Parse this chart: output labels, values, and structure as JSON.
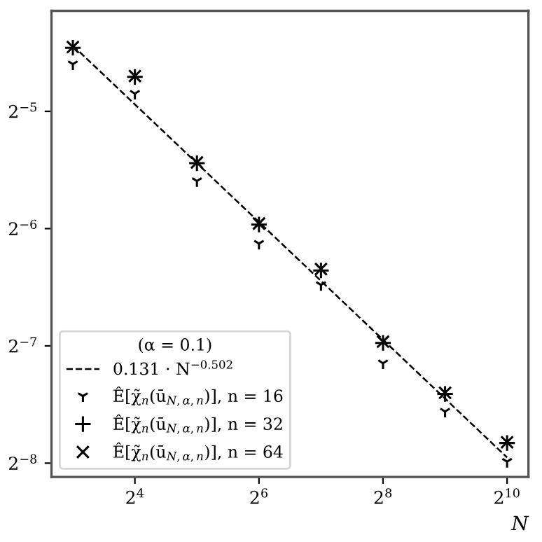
{
  "chart_data": {
    "type": "scatter",
    "xlabel": "N",
    "legend_title": "(α = 0.1)",
    "log": "xy",
    "grid": false,
    "legend": "bottom left",
    "x": [
      8,
      16,
      32,
      64,
      128,
      256,
      512,
      1024
    ],
    "xlim": [
      6.3,
      1300
    ],
    "ylim": [
      0.0036,
      0.0566
    ],
    "xticks": [
      {
        "value": 16,
        "label": "2$^{4}$"
      },
      {
        "value": 64,
        "label": "2$^{6}$"
      },
      {
        "value": 256,
        "label": "2$^{8}$"
      },
      {
        "value": 1024,
        "label": "2$^{10}$"
      }
    ],
    "yticks": [
      {
        "value": 0.03125,
        "label": "2$^{−5}$"
      },
      {
        "value": 0.015625,
        "label": "2$^{−6}$"
      },
      {
        "value": 0.0078125,
        "label": "2$^{−7}$"
      },
      {
        "value": 0.00390625,
        "label": "2$^{−8}$"
      }
    ],
    "series": [
      {
        "name": "0.131 · N$^{−0.502}$",
        "type": "line",
        "line_style": "dashed",
        "marker": "none",
        "color": "#000000",
        "x": [
          8,
          1024
        ],
        "values": [
          0.0461,
          0.00404
        ]
      },
      {
        "name": "Ê[χ̃$_{n}$(ū$_{N,α,n}$)], n = 16",
        "color": "#000000",
        "values": [
          0.0413,
          0.0347,
          0.0207,
          0.0143,
          0.0112,
          0.00705,
          0.0053,
          0.00394
        ]
      },
      {
        "name": "Ê[χ̃$_{n}$(ū$_{N,α,n}$)], n = 32",
        "marker": "plus",
        "color": "#000000",
        "values": [
          0.0455,
          0.0383,
          0.023,
          0.016,
          0.0122,
          0.00795,
          0.00588,
          0.0044
        ]
      },
      {
        "name": "Ê[χ̃$_{n}$(ū$_{N,α,n}$)], n = 64",
        "marker": "cross",
        "color": "#000000",
        "values": [
          0.0457,
          0.0385,
          0.0231,
          0.0161,
          0.0123,
          0.00801,
          0.00592,
          0.00442
        ]
      }
    ]
  }
}
